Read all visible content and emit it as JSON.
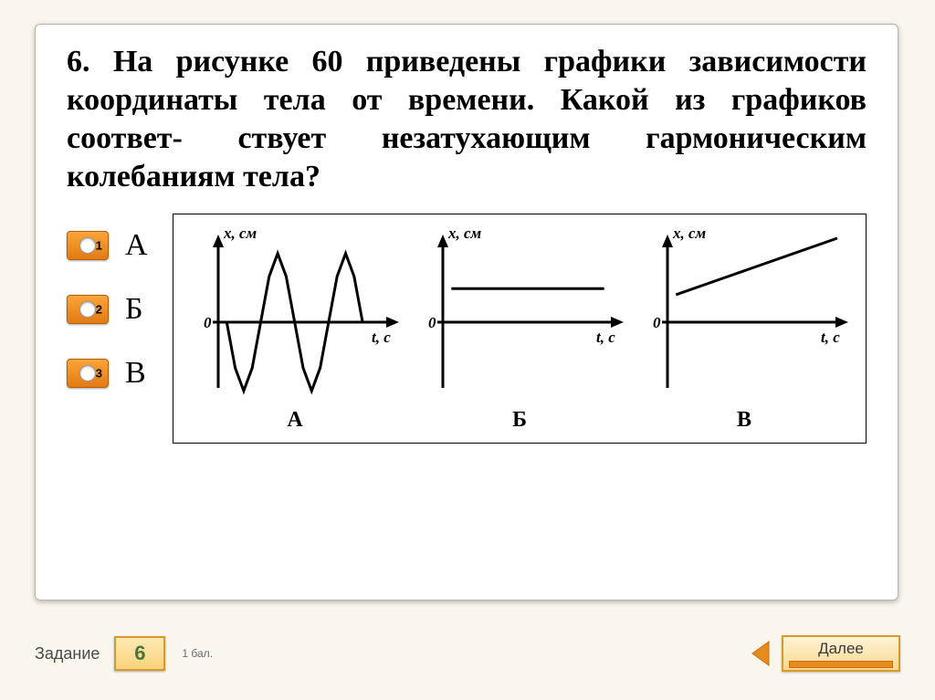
{
  "question": {
    "text": "6. На рисунке 60 приведены графики зависимости координаты тела от времени. Какой из графиков  соответ- ствует  незатухающим  гармоническим колебаниям тела?",
    "fontsize": 34,
    "fontweight": "bold",
    "color": "#000000"
  },
  "options": [
    {
      "num": "1",
      "letter": "А"
    },
    {
      "num": "2",
      "letter": "Б"
    },
    {
      "num": "3",
      "letter": "В"
    }
  ],
  "option_style": {
    "button_bg_top": "#fca43a",
    "button_bg_bottom": "#e27b14",
    "button_border": "#b35f0b",
    "circle_bg": "#ffffff",
    "num_color": "#000000",
    "letter_fontsize": 34
  },
  "charts": {
    "border_color": "#000000",
    "background": "#ffffff",
    "axis_stroke_width": 3,
    "curve_stroke_width": 3,
    "y_label": "x, см",
    "x_label": "t, с",
    "origin_label": "0",
    "panels": [
      {
        "id": "А",
        "type": "line",
        "description": "undamped-sine",
        "xlim": [
          0,
          200
        ],
        "ylim": [
          -55,
          55
        ],
        "points": [
          [
            10,
            0
          ],
          [
            20,
            -30
          ],
          [
            30,
            -45
          ],
          [
            40,
            -30
          ],
          [
            50,
            0
          ],
          [
            60,
            30
          ],
          [
            70,
            45
          ],
          [
            80,
            30
          ],
          [
            90,
            0
          ],
          [
            100,
            -30
          ],
          [
            110,
            -45
          ],
          [
            120,
            -30
          ],
          [
            130,
            0
          ],
          [
            140,
            30
          ],
          [
            150,
            45
          ],
          [
            160,
            30
          ],
          [
            170,
            0
          ]
        ]
      },
      {
        "id": "Б",
        "type": "line",
        "description": "constant",
        "xlim": [
          0,
          200
        ],
        "ylim": [
          -55,
          55
        ],
        "points": [
          [
            10,
            22
          ],
          [
            190,
            22
          ]
        ]
      },
      {
        "id": "В",
        "type": "line",
        "description": "linear-increasing",
        "xlim": [
          0,
          200
        ],
        "ylim": [
          -55,
          55
        ],
        "points": [
          [
            10,
            18
          ],
          [
            200,
            55
          ]
        ]
      }
    ]
  },
  "footer": {
    "task_label": "Задание",
    "task_number": "6",
    "points_label": "1 бал.",
    "next_label": "Далее",
    "arrow_color": "#e88b1e",
    "task_num_color": "#48763a",
    "task_num_bg_top": "#ffe9b5",
    "task_num_bg_bottom": "#f9d37a",
    "next_bg_top": "#fff3d6",
    "next_bg_bottom": "#f7d890",
    "border_color": "#d79a2b"
  },
  "page": {
    "bg": "#f8f6ed",
    "card_bg": "#ffffff",
    "card_border": "#b8b4a2"
  }
}
